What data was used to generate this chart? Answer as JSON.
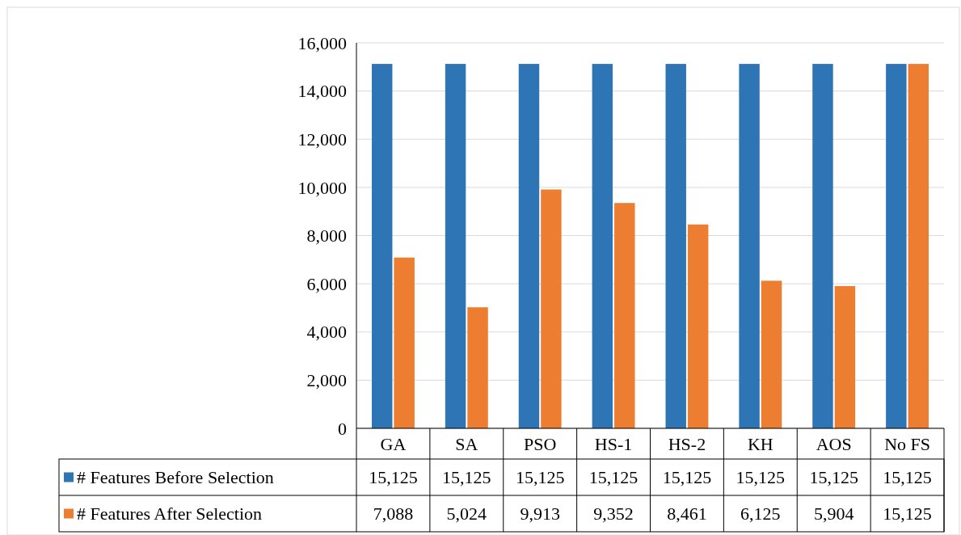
{
  "chart_data": {
    "type": "bar",
    "categories": [
      "GA",
      "SA",
      "PSO",
      "HS-1",
      "HS-2",
      "KH",
      "AOS",
      "No FS"
    ],
    "series": [
      {
        "name": "# Features Before Selection",
        "color": "#2e75b6",
        "values": [
          15125,
          15125,
          15125,
          15125,
          15125,
          15125,
          15125,
          15125
        ],
        "value_labels": [
          "15,125",
          "15,125",
          "15,125",
          "15,125",
          "15,125",
          "15,125",
          "15,125",
          "15,125"
        ]
      },
      {
        "name": "# Features After Selection",
        "color": "#ed7d31",
        "values": [
          7088,
          5024,
          9913,
          9352,
          8461,
          6125,
          5904,
          15125
        ],
        "value_labels": [
          "7,088",
          "5,024",
          "9,913",
          "9,352",
          "8,461",
          "6,125",
          "5,904",
          "15,125"
        ]
      }
    ],
    "ylim": [
      0,
      16000
    ],
    "yticks": [
      {
        "value": 0,
        "label": "0"
      },
      {
        "value": 2000,
        "label": "2,000"
      },
      {
        "value": 4000,
        "label": "4,000"
      },
      {
        "value": 6000,
        "label": "6,000"
      },
      {
        "value": 8000,
        "label": "8,000"
      },
      {
        "value": 10000,
        "label": "10,000"
      },
      {
        "value": 12000,
        "label": "12,000"
      },
      {
        "value": 14000,
        "label": "14,000"
      },
      {
        "value": 16000,
        "label": "16,000"
      }
    ],
    "grid": "y",
    "legend": "bottom"
  }
}
